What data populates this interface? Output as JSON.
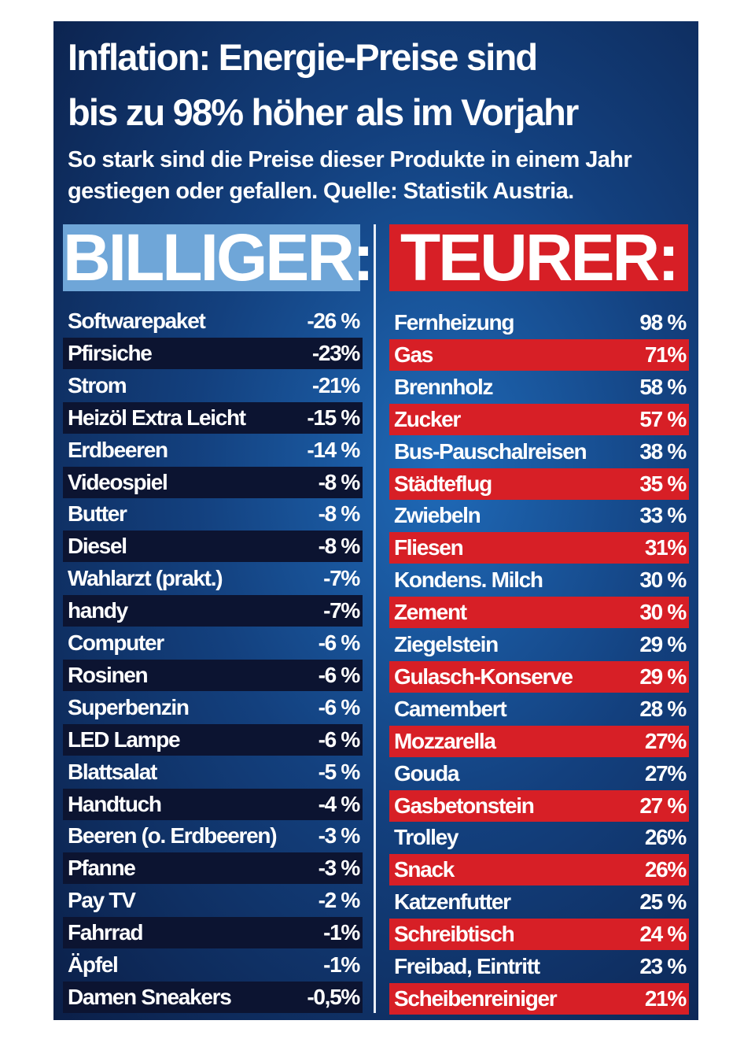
{
  "header": {
    "title_line1": "Inflation: Energie-Preise sind",
    "title_line2": "bis zu 98% höher als im Vorjahr",
    "subtitle_line1": "So stark sind die Preise dieser Produkte in einem Jahr",
    "subtitle_line2": "gestiegen oder gefallen. Quelle: Statistik Austria."
  },
  "left": {
    "heading": "BILLIGER:",
    "rows": [
      [
        "Softwarepaket",
        "-26 %"
      ],
      [
        "Pfirsiche",
        "-23%"
      ],
      [
        "Strom",
        "-21%"
      ],
      [
        "Heizöl Extra Leicht",
        "-15 %"
      ],
      [
        "Erdbeeren",
        "-14 %"
      ],
      [
        "Videospiel",
        "-8 %"
      ],
      [
        "Butter",
        "-8 %"
      ],
      [
        "Diesel",
        "-8 %"
      ],
      [
        "Wahlarzt (prakt.)",
        "-7%"
      ],
      [
        "handy",
        "-7%"
      ],
      [
        "Computer",
        "-6 %"
      ],
      [
        "Rosinen",
        "-6 %"
      ],
      [
        "Superbenzin",
        "-6 %"
      ],
      [
        "LED Lampe",
        "-6 %"
      ],
      [
        "Blattsalat",
        "-5 %"
      ],
      [
        "Handtuch",
        "-4 %"
      ],
      [
        "Beeren (o. Erdbeeren)",
        "-3 %"
      ],
      [
        "Pfanne",
        "-3 %"
      ],
      [
        "Pay TV",
        "-2 %"
      ],
      [
        "Fahrrad",
        "-1%"
      ],
      [
        "Äpfel",
        "-1%"
      ],
      [
        "Damen Sneakers",
        "-0,5%"
      ]
    ]
  },
  "right": {
    "heading": "TEURER:",
    "rows": [
      [
        "Fernheizung",
        "98 %"
      ],
      [
        "Gas",
        "71%"
      ],
      [
        "Brennholz",
        "58 %"
      ],
      [
        "Zucker",
        "57 %"
      ],
      [
        "Bus-Pauschalreisen",
        "38 %"
      ],
      [
        "Städteflug",
        "35 %"
      ],
      [
        "Zwiebeln",
        "33 %"
      ],
      [
        "Fliesen",
        "31%"
      ],
      [
        "Kondens. Milch",
        "30 %"
      ],
      [
        "Zement",
        "30 %"
      ],
      [
        "Ziegelstein",
        "29 %"
      ],
      [
        "Gulasch-Konserve",
        "29 %"
      ],
      [
        "Camembert",
        "28 %"
      ],
      [
        "Mozzarella",
        "27%"
      ],
      [
        "Gouda",
        "27%"
      ],
      [
        "Gasbetonstein",
        "27 %"
      ],
      [
        "Trolley",
        "26%"
      ],
      [
        "Snack",
        "26%"
      ],
      [
        "Katzenfutter",
        "25 %"
      ],
      [
        "Schreibtisch",
        "24 %"
      ],
      [
        "Freibad, Eintritt",
        "23 %"
      ],
      [
        "Scheibenreiniger",
        "21%"
      ]
    ]
  }
}
